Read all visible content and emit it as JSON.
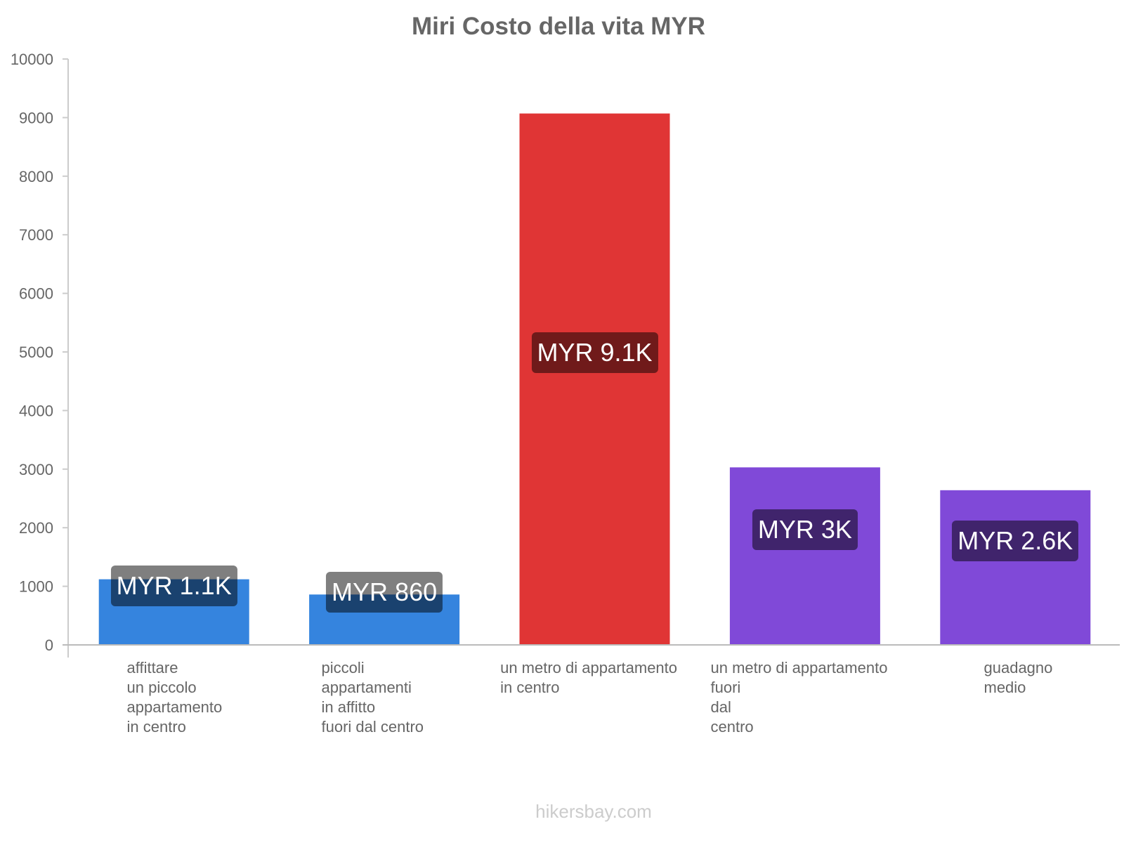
{
  "chart_data": {
    "type": "bar",
    "title": "Miri Costo della vita MYR",
    "xlabel": "",
    "ylabel": "",
    "ylim": [
      0,
      10000
    ],
    "yticks": [
      0,
      1000,
      2000,
      3000,
      4000,
      5000,
      6000,
      7000,
      8000,
      9000,
      10000
    ],
    "categories": [
      "affittare\nun piccolo\nappartamento\nin centro",
      "piccoli\nappartamenti\nin affitto\nfuori dal centro",
      "un metro di appartamento\nin centro",
      "un metro di appartamento\nfuori\ndal\ncentro",
      "guadagno\nmedio"
    ],
    "values": [
      1120,
      860,
      9070,
      3030,
      2640
    ],
    "value_labels": [
      "MYR 1.1K",
      "MYR 860",
      "MYR 9.1K",
      "MYR 3K",
      "MYR 2.6K"
    ],
    "colors": [
      "#3584de",
      "#3584de",
      "#e03535",
      "#8049d8",
      "#8049d8"
    ],
    "grid": false,
    "legend": "none"
  },
  "footer": "hikersbay.com"
}
